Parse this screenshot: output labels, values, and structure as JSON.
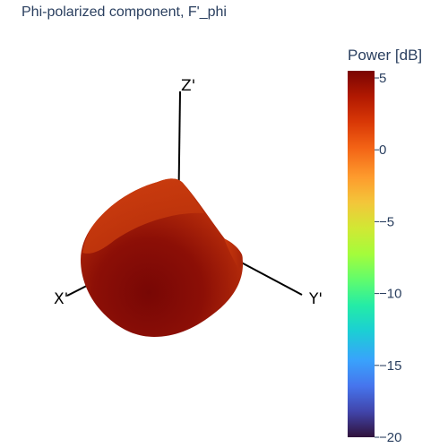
{
  "chart_data": {
    "type": "surface",
    "title": "Phi-polarized component, F'_phi",
    "axes": {
      "x_label": "X'",
      "y_label": "Y'",
      "z_label": "Z'",
      "grid": false,
      "background": false
    },
    "surface": {
      "description_value_db": 5,
      "color_range_db": [
        -20,
        5.5
      ]
    },
    "colorbar": {
      "title": "Power [dB]",
      "range": [
        -20,
        5.5
      ],
      "ticks": [
        5,
        0,
        -5,
        -10,
        -15,
        -20
      ],
      "tick_labels": [
        "5",
        "0",
        "−5",
        "−10",
        "−15",
        "−20"
      ],
      "colorscale": [
        {
          "stop": 0.0,
          "color": "#30123b"
        },
        {
          "stop": 0.07,
          "color": "#4145ab"
        },
        {
          "stop": 0.14,
          "color": "#4675ed"
        },
        {
          "stop": 0.21,
          "color": "#39a2fc"
        },
        {
          "stop": 0.29,
          "color": "#1bcfd4"
        },
        {
          "stop": 0.36,
          "color": "#24eca6"
        },
        {
          "stop": 0.43,
          "color": "#61fc6c"
        },
        {
          "stop": 0.5,
          "color": "#a4fc3b"
        },
        {
          "stop": 0.57,
          "color": "#d1e834"
        },
        {
          "stop": 0.64,
          "color": "#f3c63a"
        },
        {
          "stop": 0.71,
          "color": "#fe9b2d"
        },
        {
          "stop": 0.79,
          "color": "#f36315"
        },
        {
          "stop": 0.86,
          "color": "#d93806"
        },
        {
          "stop": 0.93,
          "color": "#b11901"
        },
        {
          "stop": 1.0,
          "color": "#7a0402"
        }
      ]
    }
  }
}
